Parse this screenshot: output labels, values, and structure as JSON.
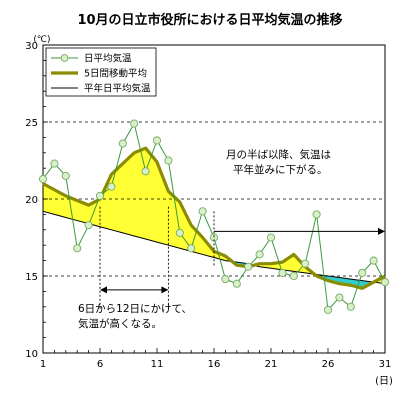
{
  "chart_data": {
    "type": "line",
    "title": "10月の日立市役所における日平均気温の推移",
    "y_unit": "(℃)",
    "x_unit": "(日)",
    "xlim": [
      1,
      31
    ],
    "ylim": [
      10,
      30
    ],
    "x_ticks": [
      1,
      6,
      11,
      16,
      21,
      26,
      31
    ],
    "y_ticks": [
      10,
      15,
      20,
      25,
      30
    ],
    "y_grid_dashed": [
      15,
      20,
      25
    ],
    "x": [
      1,
      2,
      3,
      4,
      5,
      6,
      7,
      8,
      9,
      10,
      11,
      12,
      13,
      14,
      15,
      16,
      17,
      18,
      19,
      20,
      21,
      22,
      23,
      24,
      25,
      26,
      27,
      28,
      29,
      30,
      31
    ],
    "series": [
      {
        "name": "日平均気温",
        "values": [
          21.3,
          22.3,
          21.5,
          16.8,
          18.3,
          20.2,
          20.8,
          23.6,
          24.9,
          21.8,
          23.8,
          22.5,
          17.8,
          16.8,
          19.2,
          17.5,
          14.8,
          14.5,
          15.6,
          16.4,
          17.5,
          15.2,
          15.0,
          15.8,
          19.0,
          12.8,
          13.6,
          13.0,
          15.2,
          16.0,
          14.6
        ],
        "color": "#3c9a3c",
        "marker_fill": "#d8f0c8"
      },
      {
        "name": "5日間移動平均",
        "values": [
          21.0,
          20.6,
          20.2,
          19.9,
          19.6,
          20.0,
          21.6,
          22.3,
          23.0,
          23.3,
          22.4,
          20.5,
          19.8,
          18.3,
          17.5,
          16.6,
          16.3,
          15.7,
          15.6,
          15.8,
          15.8,
          15.9,
          16.4,
          15.6,
          15.0,
          14.7,
          14.5,
          14.4,
          14.2,
          14.6,
          15.0
        ],
        "color": "#8c8c00"
      },
      {
        "name": "平年日平均気温",
        "values": [
          19.2,
          19.0,
          18.8,
          18.6,
          18.4,
          18.2,
          18.0,
          17.8,
          17.6,
          17.4,
          17.2,
          17.0,
          16.8,
          16.6,
          16.4,
          16.2,
          16.0,
          15.9,
          15.8,
          15.6,
          15.5,
          15.4,
          15.3,
          15.2,
          15.1,
          15.0,
          14.9,
          14.8,
          14.7,
          14.6,
          14.5
        ],
        "color": "#000000"
      }
    ],
    "fill_above_color": "#ffff33",
    "fill_below_color": "#33cccc",
    "legend_position": "top-left",
    "annotations": [
      {
        "lines": [
          "月の半ば以降、気温は",
          "平年並みに下がる。"
        ],
        "arrow": {
          "x1": 16,
          "x2": 31,
          "y": 17.9
        },
        "marker_x": 16
      },
      {
        "lines": [
          "6日から12日にかけて、",
          "気温が高くなる。"
        ],
        "arrow": {
          "x1": 6,
          "x2": 12,
          "y": 14.1
        },
        "marker_x": [
          6,
          12
        ]
      }
    ]
  }
}
